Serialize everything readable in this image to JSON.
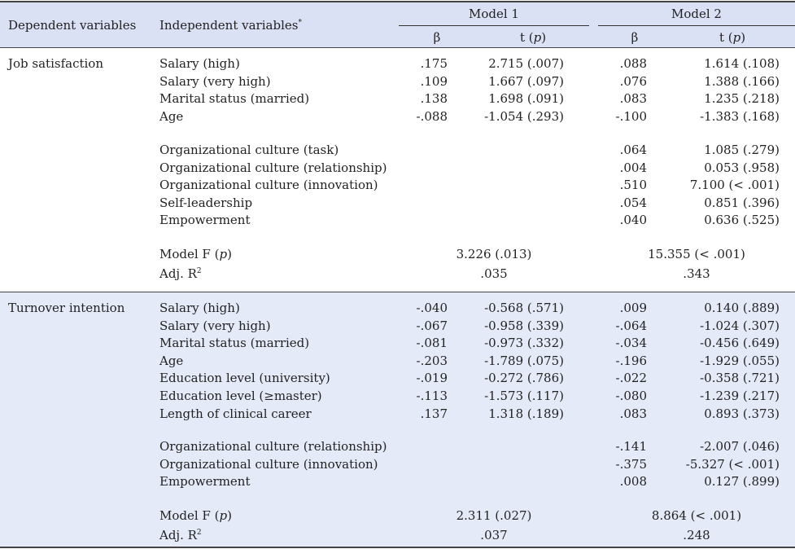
{
  "header": {
    "dependent": "Dependent variables",
    "independent": "Independent variables",
    "independent_mark": "*",
    "model1": "Model 1",
    "model2": "Model 2",
    "beta": "β",
    "t_label": "t (",
    "p_label": "p",
    "close_paren": ")"
  },
  "groups": [
    {
      "dependent": "Job satisfaction",
      "rows": [
        {
          "var": "Salary (high)",
          "b1": ".175",
          "t1": "2.715 (.007)",
          "b2": ".088",
          "t2": "1.614 (.108)"
        },
        {
          "var": "Salary (very high)",
          "b1": ".109",
          "t1": "1.667 (.097)",
          "b2": ".076",
          "t2": "1.388 (.166)"
        },
        {
          "var": "Marital status (married)",
          "b1": ".138",
          "t1": "1.698 (.091)",
          "b2": ".083",
          "t2": "1.235 (.218)"
        },
        {
          "var": "Age",
          "b1": "-.088",
          "t1": "-1.054 (.293)",
          "b2": "-.100",
          "t2": "-1.383 (.168)"
        },
        {
          "var": "Organizational culture (task)",
          "b1": "",
          "t1": "",
          "b2": ".064",
          "t2": "1.085 (.279)"
        },
        {
          "var": "Organizational culture (relationship)",
          "b1": "",
          "t1": "",
          "b2": ".004",
          "t2": "0.053 (.958)"
        },
        {
          "var": "Organizational culture (innovation)",
          "b1": "",
          "t1": "",
          "b2": ".510",
          "t2": "7.100 (< .001)"
        },
        {
          "var": "Self-leadership",
          "b1": "",
          "t1": "",
          "b2": ".054",
          "t2": "0.851 (.396)"
        },
        {
          "var": "Empowerment",
          "b1": "",
          "t1": "",
          "b2": ".040",
          "t2": "0.636 (.525)"
        }
      ],
      "model_f_label": "Model F (",
      "model_f_p": "p",
      "model_f_close": ")",
      "model_f1": "3.226 (.013)",
      "model_f2": "15.355 (< .001)",
      "adj_label": "Adj. R",
      "adj_sup": "2",
      "adj1": ".035",
      "adj2": ".343"
    },
    {
      "dependent": "Turnover intention",
      "rows": [
        {
          "var": "Salary (high)",
          "b1": "-.040",
          "t1": "-0.568 (.571)",
          "b2": ".009",
          "t2": "0.140 (.889)"
        },
        {
          "var": "Salary (very high)",
          "b1": "-.067",
          "t1": "-0.958 (.339)",
          "b2": "-.064",
          "t2": "-1.024 (.307)"
        },
        {
          "var": "Marital status (married)",
          "b1": "-.081",
          "t1": "-0.973 (.332)",
          "b2": "-.034",
          "t2": "-0.456 (.649)"
        },
        {
          "var": "Age",
          "b1": "-.203",
          "t1": "-1.789 (.075)",
          "b2": "-.196",
          "t2": "-1.929 (.055)"
        },
        {
          "var": "Education level (university)",
          "b1": "-.019",
          "t1": "-0.272 (.786)",
          "b2": "-.022",
          "t2": "-0.358 (.721)"
        },
        {
          "var": "Education level (≥master)",
          "b1": "-.113",
          "t1": "-1.573 (.117)",
          "b2": "-.080",
          "t2": "-1.239 (.217)"
        },
        {
          "var": "Length of clinical career",
          "b1": ".137",
          "t1": "1.318 (.189)",
          "b2": ".083",
          "t2": "0.893 (.373)"
        },
        {
          "var": "Organizational culture (relationship)",
          "b1": "",
          "t1": "",
          "b2": "-.141",
          "t2": "-2.007 (.046)"
        },
        {
          "var": "Organizational culture (innovation)",
          "b1": "",
          "t1": "",
          "b2": "-.375",
          "t2": "-5.327 (< .001)"
        },
        {
          "var": "Empowerment",
          "b1": "",
          "t1": "",
          "b2": ".008",
          "t2": "0.127 (.899)"
        }
      ],
      "model_f_label": "Model F (",
      "model_f_p": "p",
      "model_f_close": ")",
      "model_f1": "2.311 (.027)",
      "model_f2": "8.864 (< .001)",
      "adj_label": "Adj. R",
      "adj_sup": "2",
      "adj1": ".037",
      "adj2": ".248"
    }
  ]
}
